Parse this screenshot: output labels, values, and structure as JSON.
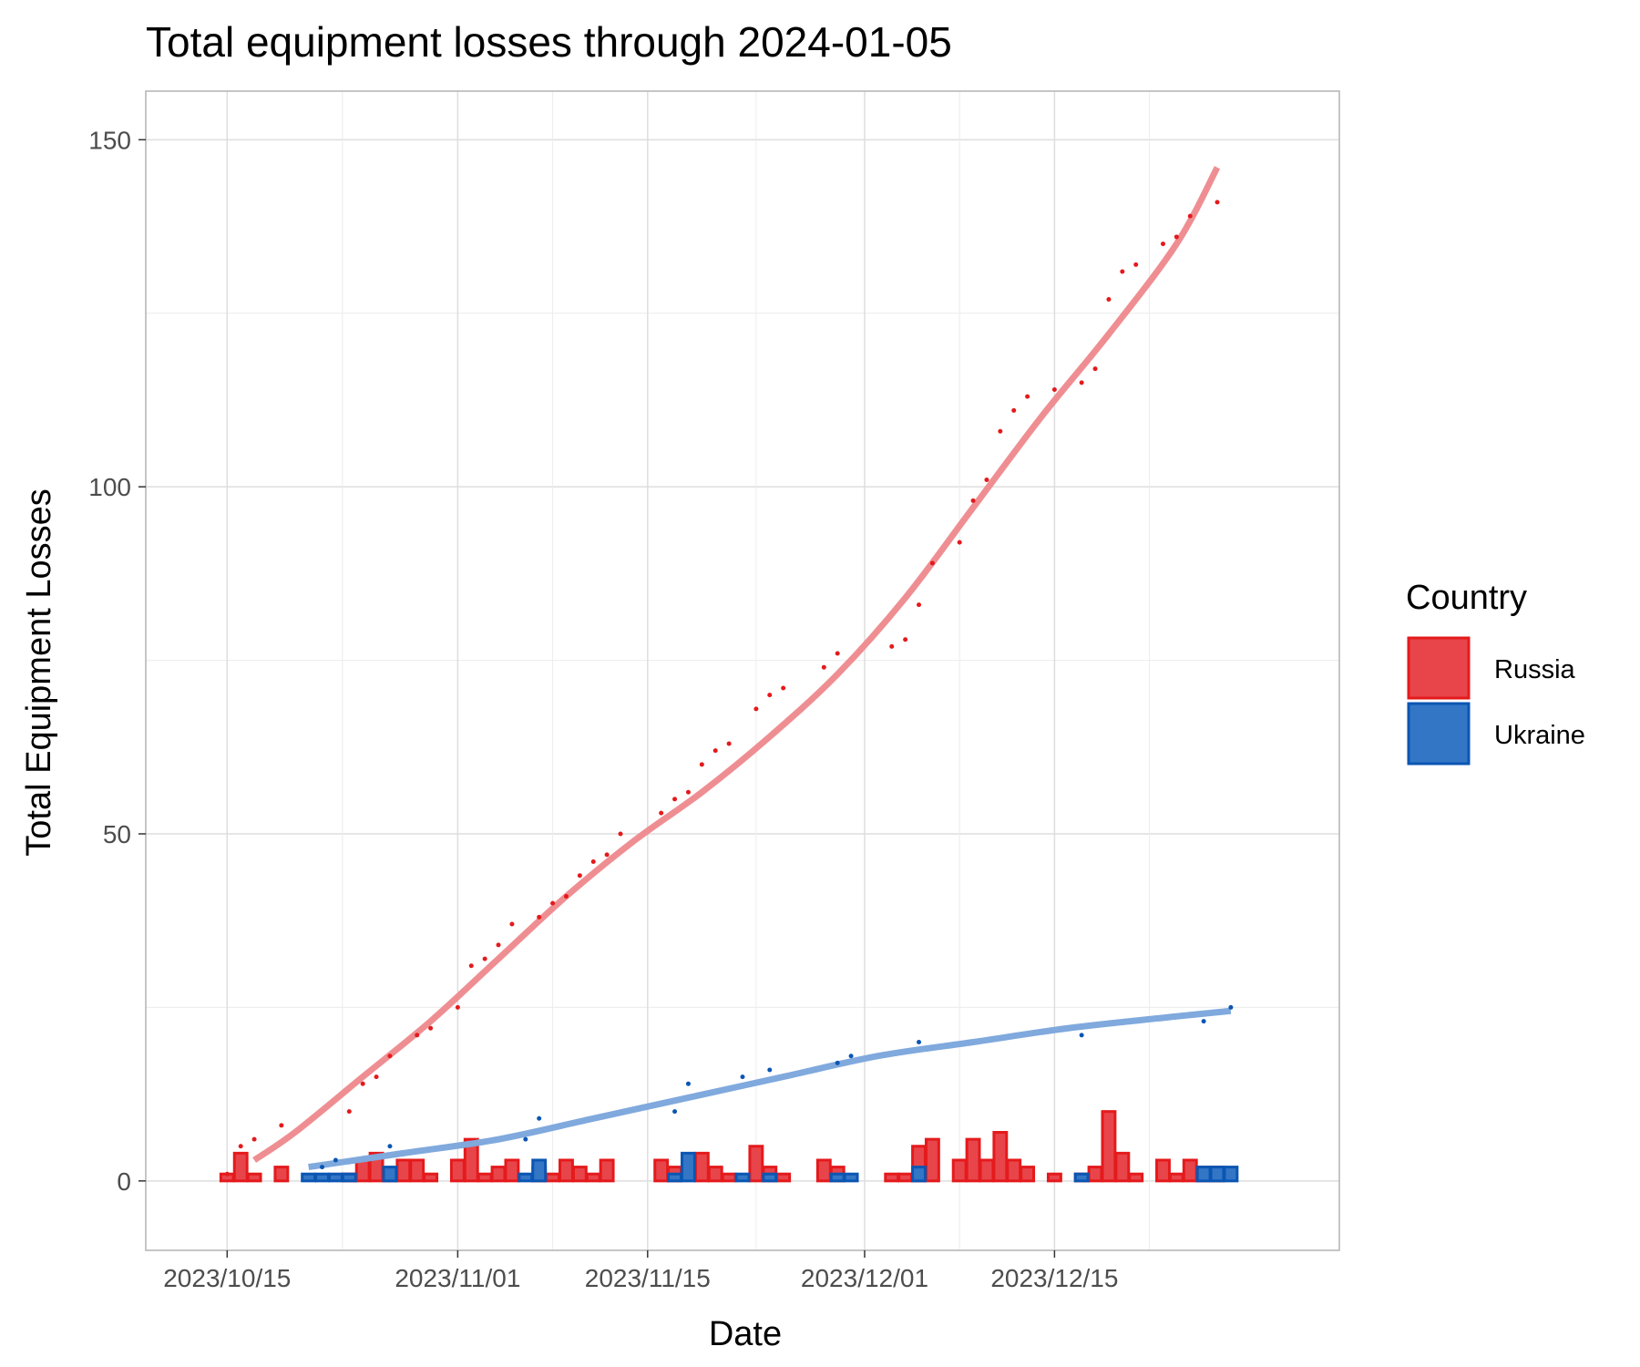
{
  "chart_data": {
    "type": "bar",
    "title": "Total equipment losses through 2024-01-05",
    "xlabel": "Date",
    "ylabel": "Total Equipment Losses",
    "x_type": "date",
    "xlim": [
      "2023-10-09",
      "2024-01-05"
    ],
    "ylim": [
      -10,
      157
    ],
    "x_ticks": [
      {
        "date": "2023-10-15",
        "label": "2023/10/15"
      },
      {
        "date": "2023-11-01",
        "label": "2023/11/01"
      },
      {
        "date": "2023-11-15",
        "label": "2023/11/15"
      },
      {
        "date": "2023-12-01",
        "label": "2023/12/01"
      },
      {
        "date": "2023-12-15",
        "label": "2023/12/15"
      }
    ],
    "y_ticks": [
      0,
      50,
      100,
      150
    ],
    "y_minor_ticks": [
      25,
      75,
      125
    ],
    "grid": true,
    "legend": {
      "title": "Country",
      "position": "right",
      "entries": [
        {
          "name": "Russia",
          "fill": "#E8454B",
          "stroke": "#E41A1C"
        },
        {
          "name": "Ukraine",
          "fill": "#3376C6",
          "stroke": "#0B56B3"
        }
      ]
    },
    "colors": {
      "Russia": {
        "fill": "#E8454B",
        "stroke": "#E41A1C",
        "point": "#E41A1C",
        "trend": "#EF8E92"
      },
      "Ukraine": {
        "fill": "#3376C6",
        "stroke": "#0B56B3",
        "point": "#0B56B3",
        "trend": "#80A9DD"
      }
    },
    "series": [
      {
        "name": "Russia",
        "daily_losses": [
          [
            "2023-10-15",
            1
          ],
          [
            "2023-10-16",
            4
          ],
          [
            "2023-10-17",
            1
          ],
          [
            "2023-10-19",
            2
          ],
          [
            "2023-10-24",
            1
          ],
          [
            "2023-10-25",
            3
          ],
          [
            "2023-10-26",
            4
          ],
          [
            "2023-10-27",
            1
          ],
          [
            "2023-10-28",
            3
          ],
          [
            "2023-10-29",
            3
          ],
          [
            "2023-10-30",
            1
          ],
          [
            "2023-11-01",
            3
          ],
          [
            "2023-11-02",
            6
          ],
          [
            "2023-11-03",
            1
          ],
          [
            "2023-11-04",
            2
          ],
          [
            "2023-11-05",
            3
          ],
          [
            "2023-11-07",
            2
          ],
          [
            "2023-11-08",
            1
          ],
          [
            "2023-11-09",
            3
          ],
          [
            "2023-11-10",
            2
          ],
          [
            "2023-11-11",
            1
          ],
          [
            "2023-11-12",
            3
          ],
          [
            "2023-11-16",
            3
          ],
          [
            "2023-11-17",
            2
          ],
          [
            "2023-11-19",
            4
          ],
          [
            "2023-11-20",
            2
          ],
          [
            "2023-11-21",
            1
          ],
          [
            "2023-11-23",
            5
          ],
          [
            "2023-11-24",
            2
          ],
          [
            "2023-11-25",
            1
          ],
          [
            "2023-11-28",
            3
          ],
          [
            "2023-11-29",
            2
          ],
          [
            "2023-12-03",
            1
          ],
          [
            "2023-12-04",
            1
          ],
          [
            "2023-12-05",
            5
          ],
          [
            "2023-12-06",
            6
          ],
          [
            "2023-12-08",
            3
          ],
          [
            "2023-12-09",
            6
          ],
          [
            "2023-12-10",
            3
          ],
          [
            "2023-12-11",
            7
          ],
          [
            "2023-12-12",
            3
          ],
          [
            "2023-12-13",
            2
          ],
          [
            "2023-12-15",
            1
          ],
          [
            "2023-12-17",
            1
          ],
          [
            "2023-12-18",
            2
          ],
          [
            "2023-12-19",
            10
          ],
          [
            "2023-12-20",
            4
          ],
          [
            "2023-12-21",
            1
          ],
          [
            "2023-12-23",
            3
          ],
          [
            "2023-12-24",
            1
          ],
          [
            "2023-12-25",
            3
          ],
          [
            "2023-12-26",
            2
          ],
          [
            "2023-12-27",
            2
          ]
        ],
        "cumulative": [
          [
            "2023-10-15",
            1
          ],
          [
            "2023-10-16",
            5
          ],
          [
            "2023-10-17",
            6
          ],
          [
            "2023-10-19",
            8
          ],
          [
            "2023-10-24",
            10
          ],
          [
            "2023-10-25",
            14
          ],
          [
            "2023-10-26",
            15
          ],
          [
            "2023-10-27",
            18
          ],
          [
            "2023-10-29",
            21
          ],
          [
            "2023-10-30",
            22
          ],
          [
            "2023-11-01",
            25
          ],
          [
            "2023-11-02",
            31
          ],
          [
            "2023-11-03",
            32
          ],
          [
            "2023-11-04",
            34
          ],
          [
            "2023-11-05",
            37
          ],
          [
            "2023-11-07",
            38
          ],
          [
            "2023-11-08",
            40
          ],
          [
            "2023-11-09",
            41
          ],
          [
            "2023-11-10",
            44
          ],
          [
            "2023-11-11",
            46
          ],
          [
            "2023-11-12",
            47
          ],
          [
            "2023-11-13",
            50
          ],
          [
            "2023-11-16",
            53
          ],
          [
            "2023-11-17",
            55
          ],
          [
            "2023-11-18",
            56
          ],
          [
            "2023-11-19",
            60
          ],
          [
            "2023-11-20",
            62
          ],
          [
            "2023-11-21",
            63
          ],
          [
            "2023-11-23",
            68
          ],
          [
            "2023-11-24",
            70
          ],
          [
            "2023-11-25",
            71
          ],
          [
            "2023-11-28",
            74
          ],
          [
            "2023-11-29",
            76
          ],
          [
            "2023-12-03",
            77
          ],
          [
            "2023-12-04",
            78
          ],
          [
            "2023-12-05",
            83
          ],
          [
            "2023-12-06",
            89
          ],
          [
            "2023-12-08",
            92
          ],
          [
            "2023-12-09",
            98
          ],
          [
            "2023-12-10",
            101
          ],
          [
            "2023-12-11",
            108
          ],
          [
            "2023-12-12",
            111
          ],
          [
            "2023-12-13",
            113
          ],
          [
            "2023-12-15",
            114
          ],
          [
            "2023-12-17",
            115
          ],
          [
            "2023-12-18",
            117
          ],
          [
            "2023-12-19",
            127
          ],
          [
            "2023-12-20",
            131
          ],
          [
            "2023-12-21",
            132
          ],
          [
            "2023-12-23",
            135
          ],
          [
            "2023-12-24",
            136
          ],
          [
            "2023-12-25",
            139
          ],
          [
            "2023-12-27",
            141
          ]
        ],
        "trend": [
          [
            "2023-10-17",
            3
          ],
          [
            "2023-10-20",
            7
          ],
          [
            "2023-10-25",
            15
          ],
          [
            "2023-10-30",
            23
          ],
          [
            "2023-11-04",
            32
          ],
          [
            "2023-11-09",
            41
          ],
          [
            "2023-11-14",
            49
          ],
          [
            "2023-11-19",
            56
          ],
          [
            "2023-11-24",
            64
          ],
          [
            "2023-11-29",
            73
          ],
          [
            "2023-12-04",
            84
          ],
          [
            "2023-12-09",
            97
          ],
          [
            "2023-12-14",
            110
          ],
          [
            "2023-12-19",
            122
          ],
          [
            "2023-12-24",
            135
          ],
          [
            "2023-12-27",
            146
          ]
        ]
      },
      {
        "name": "Ukraine",
        "daily_losses": [
          [
            "2023-10-21",
            1
          ],
          [
            "2023-10-22",
            1
          ],
          [
            "2023-10-23",
            1
          ],
          [
            "2023-10-24",
            1
          ],
          [
            "2023-10-27",
            2
          ],
          [
            "2023-11-06",
            1
          ],
          [
            "2023-11-07",
            3
          ],
          [
            "2023-11-17",
            1
          ],
          [
            "2023-11-18",
            4
          ],
          [
            "2023-11-22",
            1
          ],
          [
            "2023-11-24",
            1
          ],
          [
            "2023-11-29",
            1
          ],
          [
            "2023-11-30",
            1
          ],
          [
            "2023-12-05",
            2
          ],
          [
            "2023-12-17",
            1
          ],
          [
            "2023-12-26",
            2
          ],
          [
            "2023-12-27",
            2
          ],
          [
            "2023-12-28",
            2
          ]
        ],
        "cumulative": [
          [
            "2023-10-22",
            2
          ],
          [
            "2023-10-23",
            3
          ],
          [
            "2023-10-27",
            5
          ],
          [
            "2023-11-06",
            6
          ],
          [
            "2023-11-07",
            9
          ],
          [
            "2023-11-17",
            10
          ],
          [
            "2023-11-18",
            14
          ],
          [
            "2023-11-22",
            15
          ],
          [
            "2023-11-24",
            16
          ],
          [
            "2023-11-29",
            17
          ],
          [
            "2023-11-30",
            18
          ],
          [
            "2023-12-05",
            20
          ],
          [
            "2023-12-17",
            21
          ],
          [
            "2023-12-26",
            23
          ],
          [
            "2023-12-28",
            25
          ]
        ],
        "trend": [
          [
            "2023-10-21",
            2
          ],
          [
            "2023-10-28",
            4
          ],
          [
            "2023-11-04",
            6
          ],
          [
            "2023-11-11",
            9
          ],
          [
            "2023-11-18",
            12
          ],
          [
            "2023-11-25",
            15
          ],
          [
            "2023-12-02",
            18
          ],
          [
            "2023-12-09",
            20
          ],
          [
            "2023-12-16",
            22
          ],
          [
            "2023-12-23",
            23.5
          ],
          [
            "2023-12-28",
            24.5
          ]
        ]
      }
    ]
  }
}
